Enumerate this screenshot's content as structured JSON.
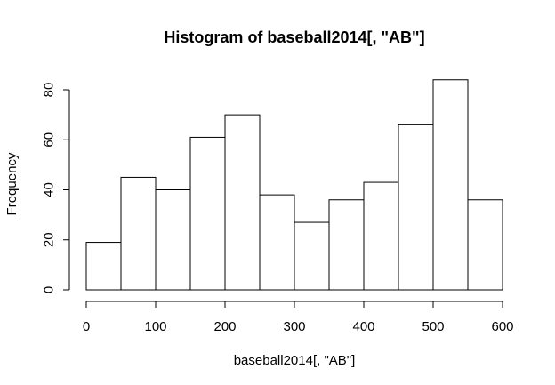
{
  "chart_data": {
    "type": "bar",
    "title": "Histogram of baseball2014[, \"AB\"]",
    "xlabel": "baseball2014[, \"AB\"]",
    "ylabel": "Frequency",
    "bins": [
      {
        "start": 0,
        "end": 50,
        "count": 19
      },
      {
        "start": 50,
        "end": 100,
        "count": 45
      },
      {
        "start": 100,
        "end": 150,
        "count": 40
      },
      {
        "start": 150,
        "end": 200,
        "count": 61
      },
      {
        "start": 200,
        "end": 250,
        "count": 70
      },
      {
        "start": 250,
        "end": 300,
        "count": 38
      },
      {
        "start": 300,
        "end": 350,
        "count": 27
      },
      {
        "start": 350,
        "end": 400,
        "count": 36
      },
      {
        "start": 400,
        "end": 450,
        "count": 43
      },
      {
        "start": 450,
        "end": 500,
        "count": 66
      },
      {
        "start": 500,
        "end": 550,
        "count": 84
      },
      {
        "start": 550,
        "end": 600,
        "count": 36
      }
    ],
    "xlim": [
      0,
      600
    ],
    "ylim": [
      0,
      84
    ],
    "xticks": [
      0,
      100,
      200,
      300,
      400,
      500,
      600
    ],
    "yticks": [
      0,
      20,
      40,
      60,
      80
    ],
    "grid": false,
    "bar_color": "#ffffff",
    "bar_border_color": "#000000"
  }
}
